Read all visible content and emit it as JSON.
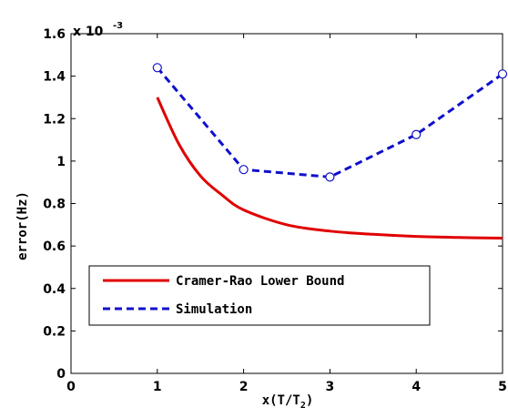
{
  "chart_data": {
    "type": "line",
    "xlabel_main": "x(T/T",
    "xlabel_sub": "2",
    "xlabel_close": ")",
    "ylabel": "error(Hz)",
    "y_multiplier": {
      "base": "x 10",
      "exponent": "-3"
    },
    "xlim": [
      0,
      5
    ],
    "ylim": [
      0,
      1.6
    ],
    "x_ticks": [
      "0",
      "1",
      "2",
      "3",
      "4",
      "5"
    ],
    "y_ticks": [
      "0",
      "0.2",
      "0.4",
      "0.6",
      "0.8",
      "1",
      "1.2",
      "1.4",
      "1.6"
    ],
    "series": [
      {
        "name": "Cramer-Rao Lower Bound",
        "color": "#e00000",
        "style": "solid",
        "x": [
          1.0,
          1.25,
          1.5,
          1.75,
          2.0,
          2.5,
          3.0,
          3.5,
          4.0,
          4.5,
          5.0
        ],
        "values": [
          1.3,
          1.08,
          0.93,
          0.84,
          0.77,
          0.7,
          0.67,
          0.655,
          0.645,
          0.64,
          0.637
        ]
      },
      {
        "name": "Simulation",
        "color": "#1010cc",
        "style": "dashed",
        "marker": "circle",
        "x": [
          1,
          2,
          3,
          4,
          5
        ],
        "values": [
          1.44,
          0.96,
          0.925,
          1.125,
          1.41
        ]
      }
    ],
    "legend_position": "lower-left"
  }
}
